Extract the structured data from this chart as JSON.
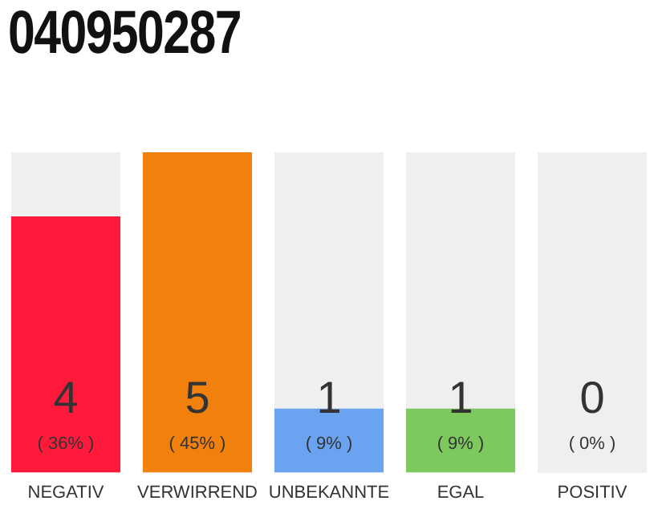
{
  "chart_data": {
    "type": "bar",
    "title": "040950287",
    "categories": [
      "NEGATIV",
      "VERWIRREND",
      "UNBEKANNTE",
      "EGAL",
      "POSITIV"
    ],
    "values": [
      4,
      5,
      1,
      1,
      0
    ],
    "colors": [
      "#ff1a3c",
      "#f2800d",
      "#6aa3f0",
      "#7dc95e",
      "#7dc95e"
    ],
    "data_labels": true,
    "annotations": [
      "( 36% )",
      "( 45% )",
      "( 9% )",
      "( 9% )",
      "( 0% )"
    ],
    "grid": false,
    "tick_labels": "x"
  }
}
